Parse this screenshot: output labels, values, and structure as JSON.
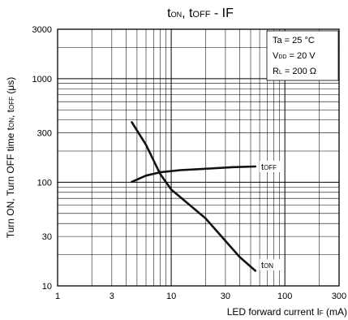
{
  "chart_data": {
    "type": "line",
    "title": {
      "t": "t",
      "on": "ON",
      "sep": ", t",
      "off": "OFF",
      "suffix": " - IF"
    },
    "xlabel": {
      "main": "LED forward current I",
      "sub": "F",
      "unit": " (mA)"
    },
    "ylabel": {
      "part1": "Turn ON, Turn OFF time t",
      "on": "ON",
      "part2": ", t",
      "off": "OFF",
      "unit": " (μs)"
    },
    "x_scale": "log",
    "y_scale": "log",
    "xlim": [
      1,
      300
    ],
    "ylim": [
      10,
      3000
    ],
    "x_ticks": [
      {
        "value": 1,
        "label": "1"
      },
      {
        "value": 3,
        "label": "3"
      },
      {
        "value": 10,
        "label": "10"
      },
      {
        "value": 30,
        "label": "30"
      },
      {
        "value": 100,
        "label": "100"
      },
      {
        "value": 300,
        "label": "300"
      }
    ],
    "y_ticks": [
      {
        "value": 10,
        "label": "10"
      },
      {
        "value": 30,
        "label": "30"
      },
      {
        "value": 100,
        "label": "100"
      },
      {
        "value": 300,
        "label": "300"
      },
      {
        "value": 1000,
        "label": "1000"
      },
      {
        "value": 3000,
        "label": "3000"
      }
    ],
    "grid": true,
    "series": [
      {
        "label": {
          "t": "t",
          "sub": "OFF"
        },
        "points": [
          [
            4.5,
            101
          ],
          [
            6,
            116
          ],
          [
            8,
            125
          ],
          [
            12,
            131
          ],
          [
            20,
            135
          ],
          [
            35,
            140
          ],
          [
            55,
            142
          ]
        ],
        "color": "#111111"
      },
      {
        "label": {
          "t": "t",
          "sub": "ON"
        },
        "points": [
          [
            4.5,
            380
          ],
          [
            6,
            230
          ],
          [
            8,
            120
          ],
          [
            10,
            85
          ],
          [
            20,
            45
          ],
          [
            40,
            19
          ],
          [
            55,
            14
          ]
        ],
        "color": "#111111"
      }
    ],
    "annotations": {
      "ta": {
        "text": "Ta = 25 °C"
      },
      "vdd": {
        "main": "V",
        "sub": "DD",
        "rest": " = 20 V"
      },
      "rl": {
        "main": "R",
        "sub": "L",
        "rest": " = 200 Ω"
      }
    }
  }
}
